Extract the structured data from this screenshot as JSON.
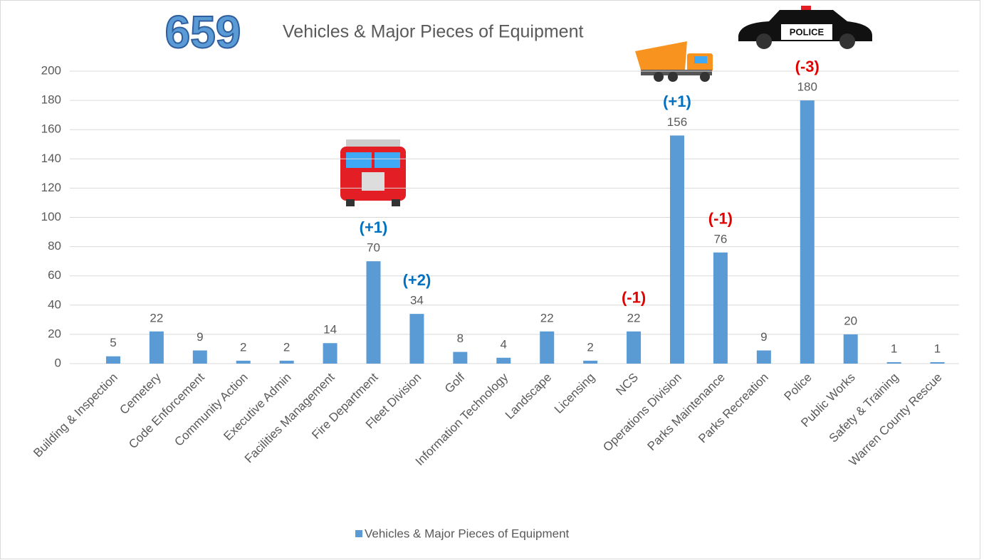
{
  "chart_data": {
    "type": "bar",
    "headline": 659,
    "title": "Vehicles & Major Pieces of Equipment",
    "categories": [
      "Building & Inspection",
      "Cemetery",
      "Code Enforcement",
      "Community Action",
      "Executive Admin",
      "Facilities Management",
      "Fire Department",
      "Fleet Division",
      "Golf",
      "Information Technology",
      "Landscape",
      "Licensing",
      "NCS",
      "Operations Division",
      "Parks Maintenance",
      "Parks Recreation",
      "Police",
      "Public Works",
      "Safety & Training",
      "Warren County Rescue"
    ],
    "series": [
      {
        "name": "Vehicles & Major Pieces of Equipment",
        "color": "#5b9bd5",
        "values": [
          5,
          22,
          9,
          2,
          2,
          14,
          70,
          34,
          8,
          4,
          22,
          2,
          22,
          156,
          76,
          9,
          180,
          20,
          1,
          1
        ]
      }
    ],
    "annotations": [
      {
        "category": "Fire Department",
        "text": "(+1)",
        "color": "#0070c0"
      },
      {
        "category": "Fleet Division",
        "text": "(+2)",
        "color": "#0070c0"
      },
      {
        "category": "NCS",
        "text": "(-1)",
        "color": "#e00000"
      },
      {
        "category": "Operations Division",
        "text": "(+1)",
        "color": "#0070c0"
      },
      {
        "category": "Parks Maintenance",
        "text": "(-1)",
        "color": "#e00000"
      },
      {
        "category": "Police",
        "text": "(-3)",
        "color": "#e00000"
      }
    ],
    "ylim": [
      0,
      200
    ],
    "yticks": [
      0,
      20,
      40,
      60,
      80,
      100,
      120,
      140,
      160,
      180,
      200
    ],
    "grid": true,
    "legend": "bottom"
  }
}
